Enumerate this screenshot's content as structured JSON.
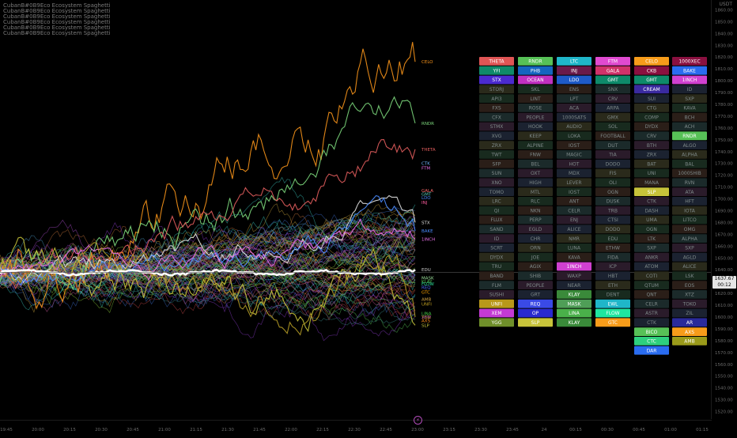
{
  "legend": {
    "lines": [
      "CubanB#0B9Eco Ecosystem Spaghetti",
      "CubanB#0B9Eco Ecosystem Spaghetti",
      "CubanB#0B9Eco Ecosystem Spaghetti",
      "CubanB#0B9Eco Ecosystem Spaghetti",
      "CubanB#0B9Eco Ecosystem Spaghetti",
      "CubanB#0B9Eco Ecosystem Spaghetti"
    ]
  },
  "price_axis": {
    "currency": "USDT",
    "last_price": "1637.67",
    "countdown": "00:12"
  },
  "tv_logo_glyph": "⚡",
  "chart_data": {
    "type": "line",
    "title": "",
    "x_ticks": [
      "19:45",
      "20:00",
      "20:15",
      "20:30",
      "20:45",
      "21:00",
      "21:15",
      "21:30",
      "21:45",
      "22:00",
      "22:15",
      "22:30",
      "22:45",
      "23:00",
      "23:15",
      "23:30",
      "23:45",
      "24",
      "00:15",
      "00:30",
      "00:45",
      "01:00",
      "01:15"
    ],
    "y_ticks": [
      1860,
      1850,
      1840,
      1830,
      1820,
      1810,
      1800,
      1790,
      1780,
      1770,
      1760,
      1750,
      1740,
      1730,
      1720,
      1710,
      1700,
      1690,
      1680,
      1670,
      1660,
      1650,
      1640,
      1630,
      1620,
      1610,
      1600,
      1590,
      1580,
      1570,
      1560,
      1550,
      1540,
      1530,
      1520
    ],
    "ylim": [
      1515,
      1865
    ],
    "grid": false,
    "baseline": {
      "name": "ETH",
      "color": "#ffffff",
      "value": 1637.67
    },
    "highlighted_series": [
      {
        "name": "CELO",
        "color": "#f7931a",
        "end": 1816,
        "peak": 1851,
        "vol": 14
      },
      {
        "name": "RNDR",
        "color": "#7bd67b",
        "end": 1764,
        "peak": 1790,
        "vol": 9
      },
      {
        "name": "THETA",
        "color": "#e05c5c",
        "end": 1742,
        "peak": 1760,
        "vol": 7
      },
      {
        "name": "STX",
        "color": "#e0e0e0",
        "end": 1680,
        "peak": 1700,
        "vol": 5
      },
      {
        "name": "BAKE",
        "color": "#4a8cff",
        "end": 1673,
        "peak": 1690,
        "vol": 5
      },
      {
        "name": "1INCH",
        "color": "#e66fe6",
        "end": 1666,
        "peak": 1680,
        "vol": 5
      },
      {
        "name": "SLP",
        "color": "#c7c33a",
        "end": 1593,
        "peak": 1640,
        "vol": 9
      },
      {
        "name": "YGG",
        "color": "#b19925",
        "end": 1600,
        "peak": 1640,
        "vol": 8
      }
    ],
    "end_labels": [
      {
        "label": "CELO",
        "color": "#f7931a",
        "value": 1816
      },
      {
        "label": "RNDR",
        "color": "#7bd67b",
        "value": 1764
      },
      {
        "label": "THETA",
        "color": "#e05c5c",
        "value": 1742
      },
      {
        "label": "CTK",
        "color": "#6fb7ff",
        "value": 1730
      },
      {
        "label": "FTM",
        "color": "#e66fe6",
        "value": 1726
      },
      {
        "label": "GALA",
        "color": "#ff6b6b",
        "value": 1707
      },
      {
        "label": "GMT",
        "color": "#5ad1c0",
        "value": 1704
      },
      {
        "label": "LDO",
        "color": "#4a8cff",
        "value": 1701
      },
      {
        "label": "INJ",
        "color": "#ff5ca0",
        "value": 1697
      },
      {
        "label": "STX",
        "color": "#e0e0e0",
        "value": 1680
      },
      {
        "label": "BAKE",
        "color": "#4a8cff",
        "value": 1673
      },
      {
        "label": "1INCH",
        "color": "#e66fe6",
        "value": 1666
      },
      {
        "label": "EDU",
        "color": "#cccccc",
        "value": 1640
      },
      {
        "label": "MASK",
        "color": "#9be29b",
        "value": 1633
      },
      {
        "label": "KLAY",
        "color": "#57c157",
        "value": 1630
      },
      {
        "label": "FLOW",
        "color": "#2ee6a0",
        "value": 1628
      },
      {
        "label": "REQ",
        "color": "#4a6cff",
        "value": 1625
      },
      {
        "label": "GTC",
        "color": "#ffa500",
        "value": 1621
      },
      {
        "label": "AMB",
        "color": "#d0a040",
        "value": 1615
      },
      {
        "label": "UNFI",
        "color": "#c0a020",
        "value": 1611
      },
      {
        "label": "LINA",
        "color": "#4ad04a",
        "value": 1603
      },
      {
        "label": "XEM",
        "color": "#cc4ce6",
        "value": 1600
      },
      {
        "label": "AXS",
        "color": "#ff8c1a",
        "value": 1597
      },
      {
        "label": "YGG",
        "color": "#b19925",
        "value": 1600
      },
      {
        "label": "SLP",
        "color": "#c7c33a",
        "value": 1593
      }
    ],
    "background_series_count": 80,
    "table": {
      "columns": [
        [
          "THETA",
          "YFI",
          "STX",
          "STORJ",
          "API3",
          "FXS",
          "CFX",
          "STMX",
          "XVG",
          "ZRX",
          "TWT",
          "SFP",
          "SUN",
          "XNO",
          "TOMO",
          "LRC",
          "QI",
          "FLUX",
          "SAND",
          "ID",
          "SCRT",
          "DYDX",
          "TRU",
          "BAND",
          "FLM",
          "SUSHI",
          "UNFI",
          "XEM",
          "YGG"
        ],
        [
          "RNDR",
          "PHB",
          "OCEAN",
          "SKL",
          "LINT",
          "ROSE",
          "PEOPLE",
          "HOOK",
          "KEEP",
          "ALPINE",
          "FNW",
          "BEL",
          "OXT",
          "HIGH",
          "MTL",
          "RLC",
          "NKN",
          "PERP",
          "EGLD",
          "CHR",
          "ORN",
          "JOE",
          "AGIX",
          "SHIB",
          "PEOPLE",
          "GRT",
          "REQ",
          "OP",
          "SLP"
        ],
        [
          "LTC",
          "INJ",
          "LDO",
          "ENS",
          "LPT",
          "ACA",
          "1000SATS",
          "AUDIO",
          "LOKA",
          "IOST",
          "MAGIC",
          "HOT",
          "MDX",
          "LEVER",
          "IOST",
          "ANT",
          "CELR",
          "ENJ",
          "ALICE",
          "NMR",
          "LUNA",
          "KAVA",
          "1INCH",
          "WAXP",
          "NEAR",
          "KLAY",
          "MASK",
          "LINA",
          "KLAY"
        ],
        [
          "FTM",
          "GALA",
          "GMT",
          "SNX",
          "CRV",
          "ARPA",
          "GMX",
          "SOL",
          "FOOTBALL",
          "DUT",
          "TIA",
          "DODO",
          "FIS",
          "OLI",
          "OGN",
          "DUSK",
          "TRB",
          "CTSI",
          "DODO",
          "EDU",
          "ETHW",
          "FIDA",
          "ICP",
          "HBT",
          "ETH",
          "DENT",
          "EWL",
          "FLOW",
          "GTC"
        ],
        [
          "CELO",
          "CKB",
          "GMT",
          "CREAM",
          "SUI",
          "CTG",
          "COMP",
          "DYDX",
          "CRV",
          "BTH",
          "ZRX",
          "BAT",
          "UNI",
          "MANA",
          "SLP",
          "CTK",
          "DASH",
          "UMA",
          "OGN",
          "LTK",
          "SXP",
          "ANKR",
          "ATOM",
          "COTI",
          "QTUM",
          "QNT",
          "CELR",
          "ASTR",
          "CTK",
          "BICO",
          "CTC",
          "DAR"
        ],
        [
          "1000XEC",
          "BAKE",
          "1INCH",
          "ID",
          "SXP",
          "KAVA",
          "BCH",
          "ACH",
          "RNDR",
          "ALGO",
          "ALPHA",
          "BAL",
          "1000SHIB",
          "RVN",
          "ATA",
          "HFT",
          "IOTA",
          "LITCO",
          "OMG",
          "ALPHA",
          "SXP",
          "AGLD",
          "ALICE",
          "LSK",
          "EOS",
          "XTZ",
          "TOKO",
          "ZIL",
          "AR",
          "AXS",
          "AMB"
        ]
      ],
      "colors": {
        "THETA": "#e05555",
        "YFI": "#0f8a6a",
        "STX": "#4b2ad0",
        "RNDR": "#57c157",
        "PHB": "#1565c0",
        "OCEAN": "#c030c0",
        "LTC": "#1fb6c9",
        "INJ": "#6a1a4a",
        "LDO": "#1e5ac8",
        "FTM": "#e04ad0",
        "GALA": "#d0326a",
        "GMT": "#0e8a6a",
        "CELO": "#f79c1a",
        "CKB": "#8a1040",
        "CREAM": "#3a2aa0",
        "1000XEC": "#8a1040",
        "BAKE": "#2a6cf0",
        "1INCH": "#d040d0",
        "UNFI": "#b8981a",
        "XEM": "#c43ad4",
        "YGG": "#6f8f2a",
        "REQ": "#3a4ae6",
        "OP": "#2a2ad0",
        "SLP": "#c7c33a",
        "MASK": "#4f9e57",
        "KLAY": "#3a8a3a",
        "LINA": "#4ab04a",
        "EWL": "#1fb6c9",
        "FLOW": "#1fe6a0",
        "GTC": "#f79c1a",
        "BICO": "#57c157",
        "CTC": "#2ed07e",
        "DAR": "#2a6cf0",
        "AR": "#2a2a9a",
        "AXS": "#f79c1a",
        "AMB": "#9a9a1a"
      }
    }
  }
}
